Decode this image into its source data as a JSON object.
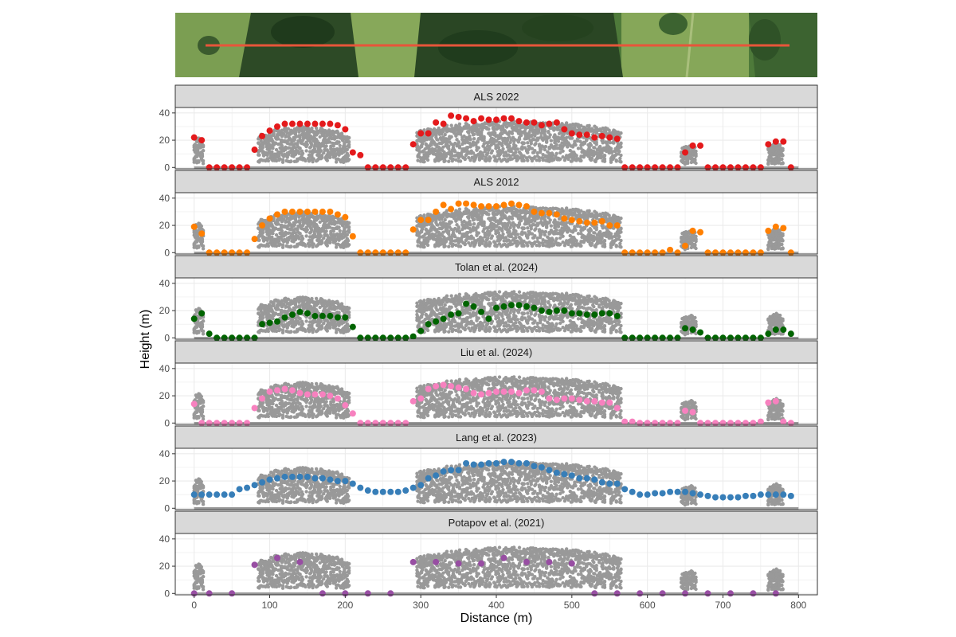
{
  "figure": {
    "xlabel": "Distance (m)",
    "ylabel": "Height (m)",
    "x_ticks": [
      "0",
      "100",
      "200",
      "300",
      "400",
      "500",
      "600",
      "700",
      "800"
    ],
    "y_ticks": [
      "0",
      "20",
      "40"
    ]
  },
  "chart_data": {
    "type": "scatter",
    "xlim": [
      -25,
      825
    ],
    "ylim": [
      -1,
      44
    ],
    "grid": true,
    "x_tick_values": [
      0,
      100,
      200,
      300,
      400,
      500,
      600,
      700,
      800
    ],
    "y_tick_values": [
      0,
      20,
      40
    ],
    "reference_point_color": "#999999",
    "aerial_image": {
      "transect_color": "#e8553a"
    },
    "reference_canopy_profile": {
      "description_values": [
        {
          "x": [
            0,
            12
          ],
          "top": 22
        },
        {
          "x": [
            85,
            205
          ],
          "top": 30
        },
        {
          "x": [
            295,
            565
          ],
          "top": 34
        },
        {
          "x": [
            645,
            665
          ],
          "top": 17
        },
        {
          "x": [
            760,
            780
          ],
          "top": 18
        }
      ]
    },
    "panels": [
      {
        "name": "ALS 2022",
        "color": "#e41a1c",
        "x": [
          0,
          10,
          20,
          30,
          40,
          50,
          60,
          70,
          80,
          90,
          100,
          110,
          120,
          130,
          140,
          150,
          160,
          170,
          180,
          190,
          200,
          210,
          220,
          230,
          240,
          250,
          260,
          270,
          280,
          290,
          300,
          310,
          320,
          330,
          340,
          350,
          360,
          370,
          380,
          390,
          400,
          410,
          420,
          430,
          440,
          450,
          460,
          470,
          480,
          490,
          500,
          510,
          520,
          530,
          540,
          550,
          560,
          570,
          580,
          590,
          600,
          610,
          620,
          630,
          640,
          650,
          660,
          670,
          680,
          690,
          700,
          710,
          720,
          730,
          740,
          750,
          760,
          770,
          780,
          790
        ],
        "y": [
          22,
          20,
          0,
          0,
          0,
          0,
          0,
          0,
          13,
          23,
          27,
          30,
          32,
          32,
          32,
          32,
          32,
          32,
          32,
          31,
          28,
          11,
          9,
          0,
          0,
          0,
          0,
          0,
          0,
          17,
          25,
          25,
          33,
          32,
          38,
          37,
          36,
          34,
          36,
          35,
          35,
          36,
          36,
          34,
          33,
          33,
          31,
          32,
          33,
          28,
          25,
          24,
          24,
          22,
          23,
          22,
          21,
          0,
          0,
          0,
          0,
          0,
          0,
          0,
          0,
          11,
          16,
          16,
          0,
          0,
          0,
          0,
          0,
          0,
          0,
          0,
          17,
          19,
          19,
          0
        ]
      },
      {
        "name": "ALS 2012",
        "color": "#ff7f00",
        "x": [
          0,
          10,
          20,
          30,
          40,
          50,
          60,
          70,
          80,
          90,
          100,
          110,
          120,
          130,
          140,
          150,
          160,
          170,
          180,
          190,
          200,
          210,
          220,
          230,
          240,
          250,
          260,
          270,
          280,
          290,
          300,
          310,
          320,
          330,
          340,
          350,
          360,
          370,
          380,
          390,
          400,
          410,
          420,
          430,
          440,
          450,
          460,
          470,
          480,
          490,
          500,
          510,
          520,
          530,
          540,
          550,
          560,
          570,
          580,
          590,
          600,
          610,
          620,
          630,
          640,
          650,
          660,
          670,
          680,
          690,
          700,
          710,
          720,
          730,
          740,
          750,
          760,
          770,
          780,
          790
        ],
        "y": [
          19,
          14,
          0,
          0,
          0,
          0,
          0,
          0,
          10,
          20,
          25,
          28,
          30,
          30,
          30,
          30,
          30,
          30,
          30,
          28,
          26,
          12,
          0,
          0,
          0,
          0,
          0,
          0,
          0,
          17,
          24,
          24,
          30,
          35,
          32,
          36,
          36,
          35,
          34,
          34,
          34,
          35,
          36,
          35,
          34,
          30,
          29,
          29,
          28,
          25,
          24,
          23,
          22,
          22,
          23,
          20,
          20,
          0,
          0,
          0,
          0,
          0,
          0,
          2,
          0,
          5,
          16,
          15,
          0,
          0,
          0,
          0,
          0,
          0,
          0,
          0,
          16,
          19,
          18,
          0
        ]
      },
      {
        "name": "Tolan et al. (2024)",
        "color": "#006400",
        "x": [
          0,
          10,
          20,
          30,
          40,
          50,
          60,
          70,
          80,
          90,
          100,
          110,
          120,
          130,
          140,
          150,
          160,
          170,
          180,
          190,
          200,
          210,
          220,
          230,
          240,
          250,
          260,
          270,
          280,
          290,
          300,
          310,
          320,
          330,
          340,
          350,
          360,
          370,
          380,
          390,
          400,
          410,
          420,
          430,
          440,
          450,
          460,
          470,
          480,
          490,
          500,
          510,
          520,
          530,
          540,
          550,
          560,
          570,
          580,
          590,
          600,
          610,
          620,
          630,
          640,
          650,
          660,
          670,
          680,
          690,
          700,
          710,
          720,
          730,
          740,
          750,
          760,
          770,
          780,
          790
        ],
        "y": [
          14,
          18,
          3,
          0,
          0,
          0,
          0,
          0,
          0,
          10,
          11,
          12,
          15,
          17,
          19,
          18,
          16,
          16,
          16,
          15,
          15,
          8,
          0,
          0,
          0,
          0,
          0,
          0,
          0,
          1,
          5,
          10,
          12,
          14,
          17,
          18,
          25,
          23,
          19,
          14,
          22,
          23,
          24,
          24,
          23,
          22,
          20,
          19,
          20,
          20,
          18,
          18,
          17,
          17,
          18,
          18,
          16,
          0,
          0,
          0,
          0,
          0,
          0,
          0,
          0,
          7,
          6,
          4,
          0,
          0,
          0,
          0,
          0,
          0,
          0,
          0,
          3,
          6,
          6,
          3
        ]
      },
      {
        "name": "Liu et al. (2024)",
        "color": "#f781bf",
        "x": [
          0,
          10,
          20,
          30,
          40,
          50,
          60,
          70,
          80,
          90,
          100,
          110,
          120,
          130,
          140,
          150,
          160,
          170,
          180,
          190,
          200,
          210,
          220,
          230,
          240,
          250,
          260,
          270,
          280,
          290,
          300,
          310,
          320,
          330,
          340,
          350,
          360,
          370,
          380,
          390,
          400,
          410,
          420,
          430,
          440,
          450,
          460,
          470,
          480,
          490,
          500,
          510,
          520,
          530,
          540,
          550,
          560,
          570,
          580,
          590,
          600,
          610,
          620,
          630,
          640,
          650,
          660,
          670,
          680,
          690,
          700,
          710,
          720,
          730,
          740,
          750,
          760,
          770,
          780,
          790
        ],
        "y": [
          14,
          0,
          0,
          0,
          0,
          0,
          0,
          0,
          11,
          18,
          23,
          24,
          25,
          24,
          22,
          21,
          21,
          21,
          20,
          18,
          13,
          7,
          0,
          0,
          0,
          0,
          0,
          0,
          0,
          16,
          18,
          25,
          27,
          28,
          27,
          26,
          25,
          22,
          21,
          22,
          23,
          23,
          23,
          22,
          24,
          24,
          23,
          18,
          17,
          18,
          18,
          17,
          16,
          16,
          15,
          15,
          11,
          1,
          1,
          0,
          0,
          0,
          0,
          0,
          0,
          9,
          8,
          0,
          0,
          0,
          0,
          0,
          0,
          0,
          0,
          1,
          15,
          16,
          1,
          0
        ]
      },
      {
        "name": "Lang et al. (2023)",
        "color": "#377eb8",
        "x": [
          0,
          10,
          20,
          30,
          40,
          50,
          60,
          70,
          80,
          90,
          100,
          110,
          120,
          130,
          140,
          150,
          160,
          170,
          180,
          190,
          200,
          210,
          220,
          230,
          240,
          250,
          260,
          270,
          280,
          290,
          300,
          310,
          320,
          330,
          340,
          350,
          360,
          370,
          380,
          390,
          400,
          410,
          420,
          430,
          440,
          450,
          460,
          470,
          480,
          490,
          500,
          510,
          520,
          530,
          540,
          550,
          560,
          570,
          580,
          590,
          600,
          610,
          620,
          630,
          640,
          650,
          660,
          670,
          680,
          690,
          700,
          710,
          720,
          730,
          740,
          750,
          760,
          770,
          780,
          790
        ],
        "y": [
          10,
          10,
          10,
          10,
          10,
          10,
          14,
          15,
          17,
          19,
          21,
          22,
          23,
          23,
          23,
          23,
          22,
          22,
          21,
          20,
          20,
          18,
          15,
          13,
          12,
          12,
          12,
          12,
          13,
          15,
          17,
          22,
          24,
          27,
          28,
          28,
          33,
          32,
          32,
          33,
          33,
          34,
          34,
          33,
          33,
          31,
          30,
          28,
          26,
          25,
          24,
          22,
          22,
          21,
          19,
          18,
          18,
          14,
          12,
          10,
          10,
          11,
          11,
          12,
          12,
          12,
          11,
          10,
          9,
          8,
          8,
          8,
          8,
          9,
          9,
          10,
          10,
          10,
          10,
          9
        ]
      },
      {
        "name": "Potapov et al. (2021)",
        "color": "#984ea3",
        "x": [
          0,
          20,
          50,
          80,
          110,
          140,
          170,
          200,
          230,
          260,
          290,
          320,
          350,
          380,
          410,
          440,
          470,
          500,
          530,
          560,
          590,
          620,
          650,
          680,
          710,
          740,
          770
        ],
        "y": [
          0,
          0,
          0,
          21,
          26,
          23,
          0,
          0,
          0,
          0,
          23,
          23,
          22,
          22,
          26,
          23,
          23,
          22,
          0,
          0,
          0,
          0,
          0,
          0,
          0,
          0,
          0
        ]
      }
    ]
  }
}
